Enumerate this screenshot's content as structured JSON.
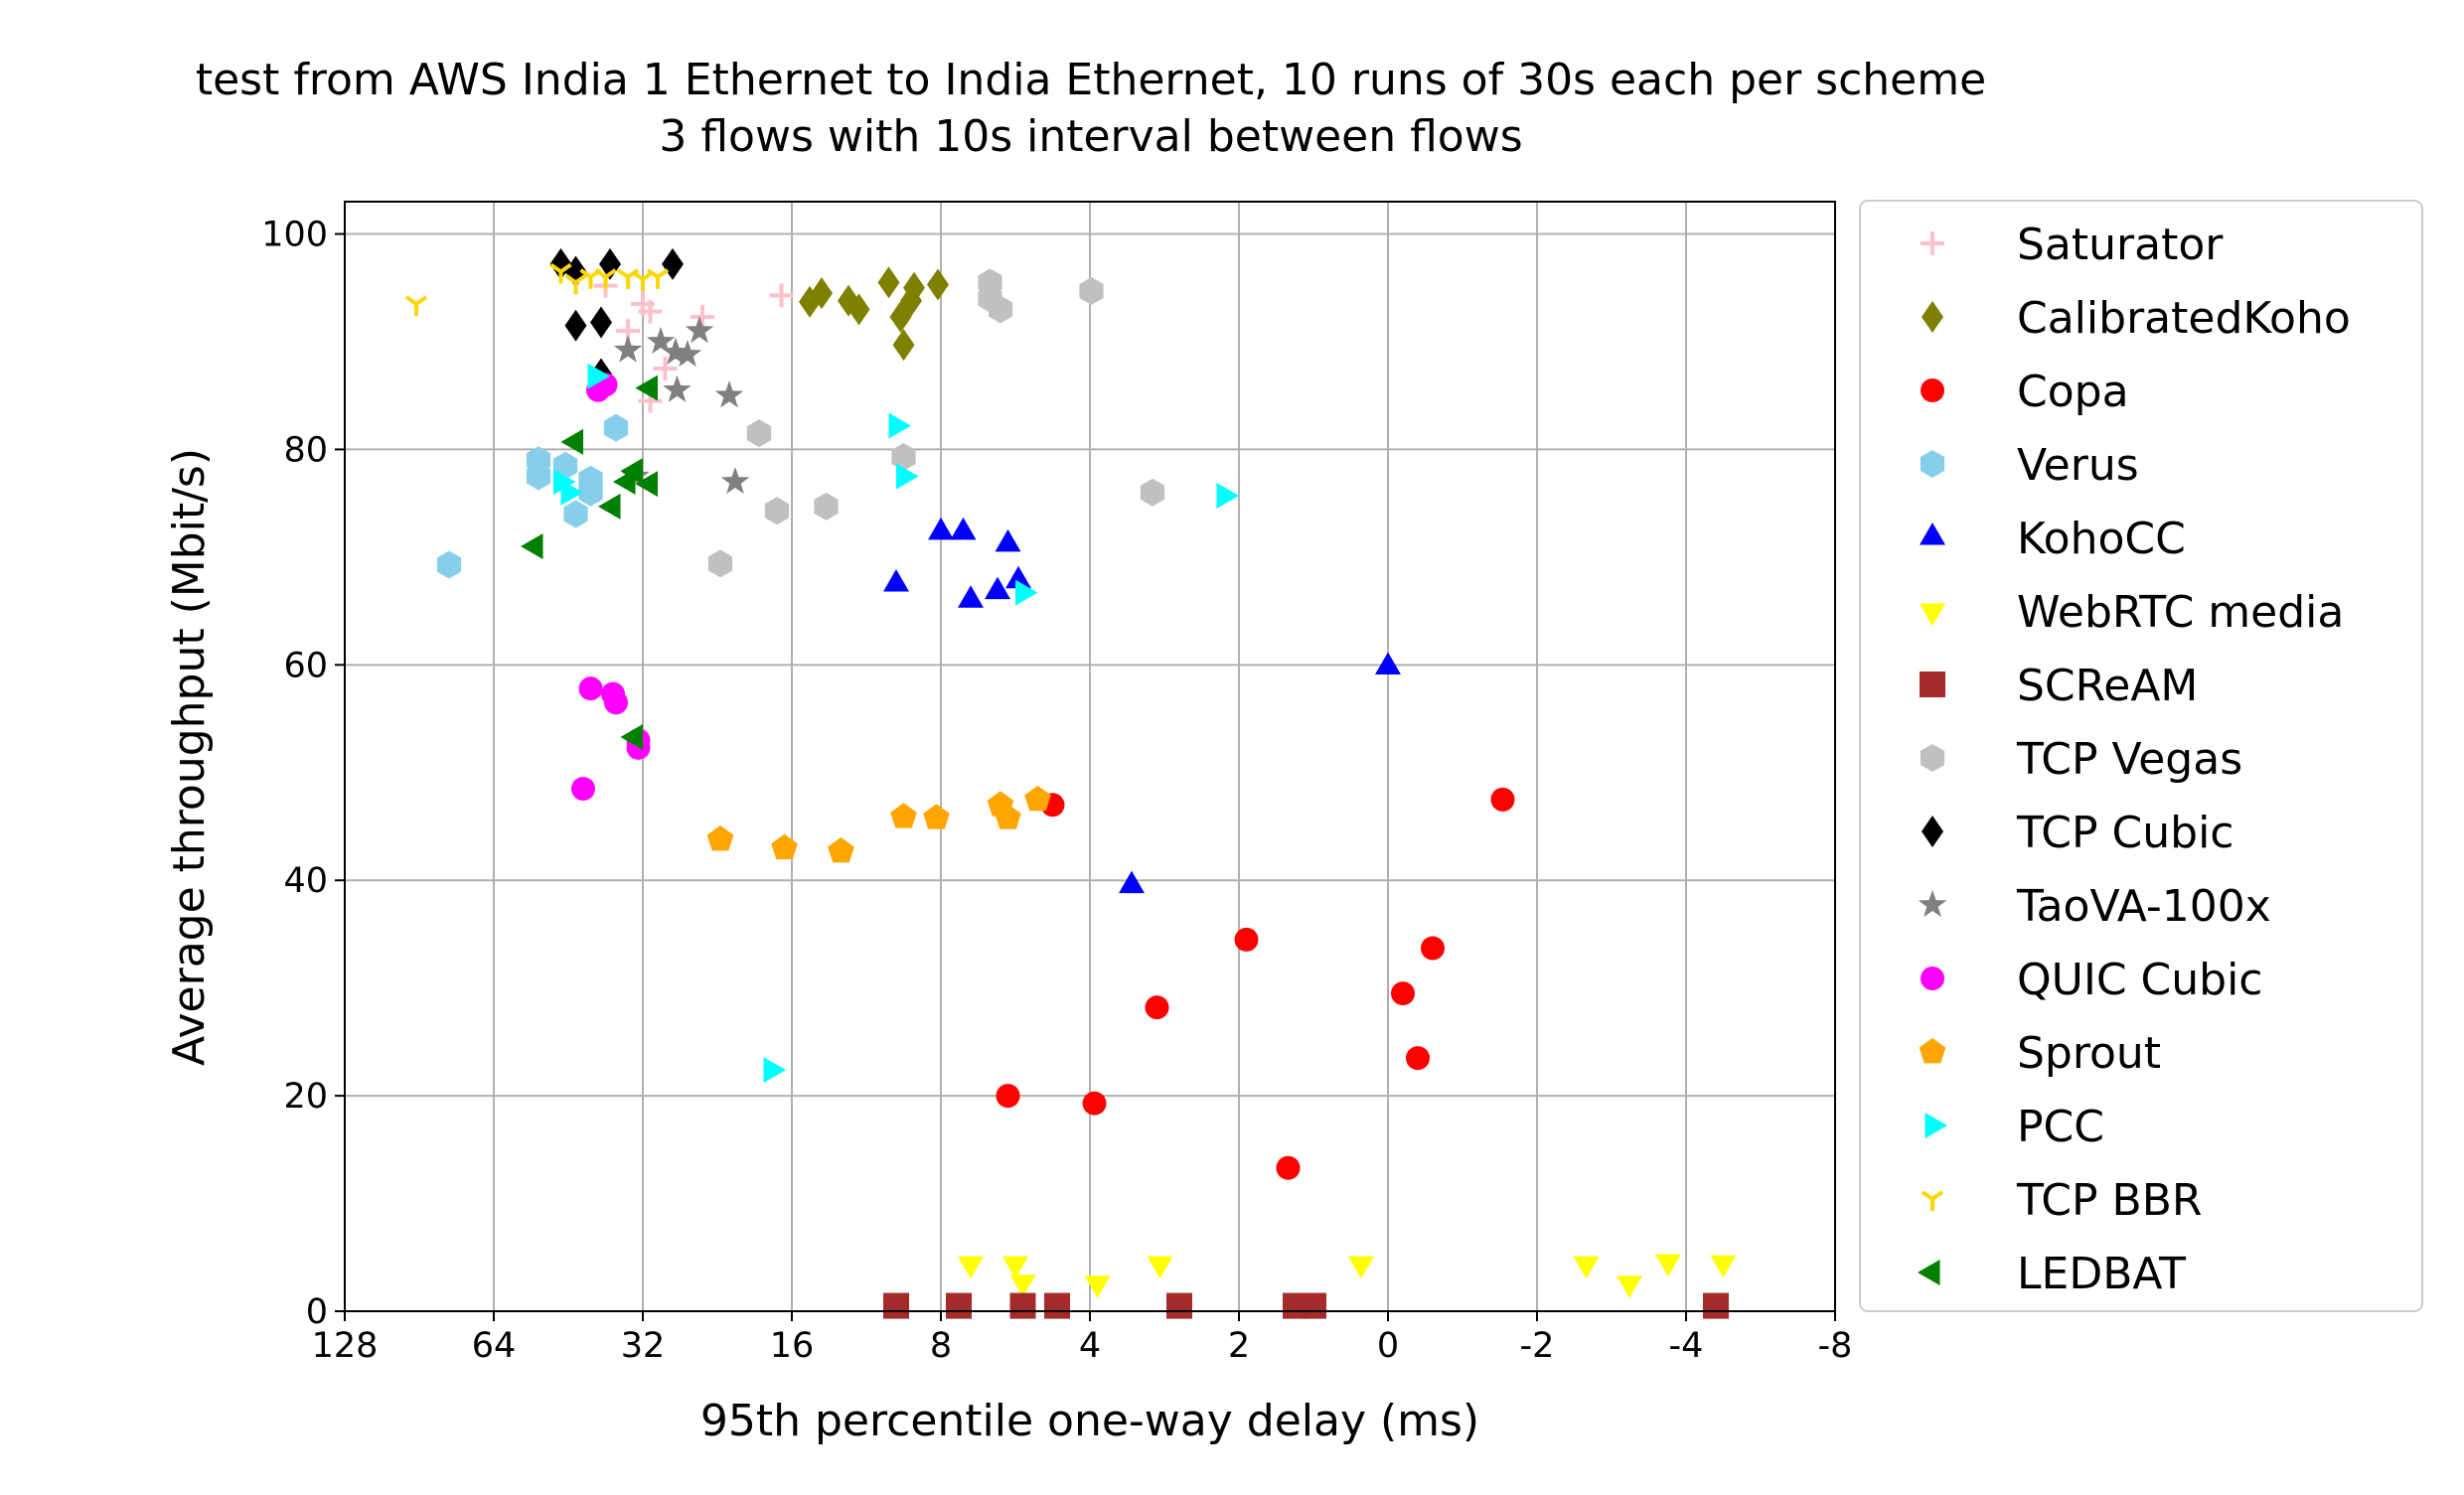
{
  "chart_data": {
    "type": "scatter",
    "title": "test from AWS India 1 Ethernet to India Ethernet, 10 runs of 30s each per scheme",
    "subtitle": "3 flows with 10s interval between flows",
    "xlabel": "95th percentile one-way delay (ms)",
    "ylabel": "Average throughput (Mbit/s)",
    "x_ticks": [
      {
        "value": 7,
        "label": "128"
      },
      {
        "value": 6,
        "label": "64"
      },
      {
        "value": 5,
        "label": "32"
      },
      {
        "value": 4,
        "label": "16"
      },
      {
        "value": 3,
        "label": "8"
      },
      {
        "value": 2,
        "label": "4"
      },
      {
        "value": 1,
        "label": "2"
      },
      {
        "value": 0,
        "label": "0"
      },
      {
        "value": -1,
        "label": "-2"
      },
      {
        "value": -2,
        "label": "-4"
      },
      {
        "value": -3,
        "label": "-8"
      }
    ],
    "xlim": [
      7,
      -3
    ],
    "y_ticks": [
      0,
      20,
      40,
      60,
      80,
      100
    ],
    "ylim": [
      0,
      103
    ],
    "grid": true,
    "legend_position": "right",
    "series": [
      {
        "name": "Saturator",
        "marker": "plus",
        "color": "#ffc0cb",
        "points": [
          [
            5.0,
            93.5
          ],
          [
            4.95,
            92.8
          ],
          [
            4.6,
            92.3
          ],
          [
            4.07,
            94.3
          ],
          [
            5.25,
            95.2
          ],
          [
            5.1,
            91.0
          ],
          [
            4.85,
            87.5
          ],
          [
            4.95,
            84.5
          ]
        ]
      },
      {
        "name": "CalibratedKoho",
        "marker": "diamond",
        "color": "#808000",
        "points": [
          [
            3.88,
            93.7
          ],
          [
            3.8,
            94.5
          ],
          [
            3.62,
            93.8
          ],
          [
            3.55,
            93.0
          ],
          [
            3.35,
            95.5
          ],
          [
            3.18,
            95.0
          ],
          [
            3.02,
            95.3
          ],
          [
            3.27,
            92.3
          ],
          [
            3.25,
            89.7
          ],
          [
            3.2,
            93.8
          ]
        ]
      },
      {
        "name": "Copa",
        "marker": "circle",
        "color": "#ff0000",
        "points": [
          [
            2.25,
            47.0
          ],
          [
            -0.77,
            47.5
          ],
          [
            0.95,
            34.5
          ],
          [
            -0.3,
            33.7
          ],
          [
            1.55,
            28.2
          ],
          [
            -0.1,
            29.5
          ],
          [
            -0.2,
            23.5
          ],
          [
            2.55,
            20.0
          ],
          [
            1.97,
            19.3
          ],
          [
            0.67,
            13.3
          ]
        ]
      },
      {
        "name": "Verus",
        "marker": "hexagon",
        "color": "#87ceeb",
        "points": [
          [
            6.3,
            69.3
          ],
          [
            5.7,
            79.0
          ],
          [
            5.7,
            77.5
          ],
          [
            5.52,
            78.5
          ],
          [
            5.35,
            77.2
          ],
          [
            5.18,
            82.0
          ],
          [
            5.45,
            74.0
          ],
          [
            5.35,
            76.0
          ]
        ]
      },
      {
        "name": "KohoCC",
        "marker": "triangle-up",
        "color": "#0000ff",
        "points": [
          [
            3.0,
            72.3
          ],
          [
            2.85,
            72.3
          ],
          [
            2.55,
            71.2
          ],
          [
            2.8,
            66.0
          ],
          [
            2.62,
            66.8
          ],
          [
            2.48,
            67.8
          ],
          [
            3.3,
            67.5
          ],
          [
            0.0,
            59.8
          ],
          [
            1.72,
            39.5
          ]
        ]
      },
      {
        "name": "WebRTC media",
        "marker": "triangle-down",
        "color": "#ffff00",
        "points": [
          [
            2.8,
            4.4
          ],
          [
            2.5,
            4.4
          ],
          [
            2.45,
            2.7
          ],
          [
            1.95,
            2.6
          ],
          [
            1.53,
            4.4
          ],
          [
            0.18,
            4.4
          ],
          [
            -1.33,
            4.4
          ],
          [
            -1.62,
            2.6
          ],
          [
            -1.88,
            4.6
          ],
          [
            -2.25,
            4.5
          ]
        ]
      },
      {
        "name": "SCReAM",
        "marker": "square",
        "color": "#a52a2a",
        "points": [
          [
            3.3,
            0.5
          ],
          [
            2.88,
            0.5
          ],
          [
            2.45,
            0.5
          ],
          [
            2.22,
            0.5
          ],
          [
            1.4,
            0.5
          ],
          [
            0.62,
            0.5
          ],
          [
            0.5,
            0.5
          ],
          [
            -2.2,
            0.5
          ]
        ]
      },
      {
        "name": "TCP Vegas",
        "marker": "hexagon",
        "color": "#c0c0c0",
        "points": [
          [
            2.67,
            95.5
          ],
          [
            2.67,
            94.0
          ],
          [
            2.6,
            93.0
          ],
          [
            1.99,
            94.7
          ],
          [
            4.22,
            81.5
          ],
          [
            4.1,
            74.3
          ],
          [
            3.77,
            74.7
          ],
          [
            4.48,
            69.4
          ],
          [
            3.25,
            79.3
          ],
          [
            1.58,
            76.0
          ]
        ]
      },
      {
        "name": "TCP Cubic",
        "marker": "diamond",
        "color": "#000000",
        "points": [
          [
            5.55,
            97.2
          ],
          [
            5.45,
            96.5
          ],
          [
            5.22,
            97.2
          ],
          [
            4.8,
            97.2
          ],
          [
            5.45,
            91.5
          ],
          [
            5.28,
            91.8
          ],
          [
            5.28,
            87.0
          ]
        ]
      },
      {
        "name": "TaoVA-100x",
        "marker": "star",
        "color": "#808080",
        "points": [
          [
            5.1,
            89.2
          ],
          [
            4.88,
            90.0
          ],
          [
            4.78,
            89.0
          ],
          [
            4.7,
            88.8
          ],
          [
            4.62,
            91.0
          ],
          [
            4.77,
            85.5
          ],
          [
            4.42,
            85.0
          ],
          [
            4.38,
            77.0
          ],
          [
            5.05,
            77.5
          ]
        ]
      },
      {
        "name": "QUIC Cubic",
        "marker": "circle",
        "color": "#ff00ff",
        "points": [
          [
            5.3,
            85.5
          ],
          [
            5.25,
            86.0
          ],
          [
            5.35,
            57.8
          ],
          [
            5.2,
            57.3
          ],
          [
            5.18,
            56.5
          ],
          [
            5.03,
            53.0
          ],
          [
            5.03,
            52.3
          ],
          [
            5.4,
            48.5
          ]
        ]
      },
      {
        "name": "Sprout",
        "marker": "pentagon",
        "color": "#ffa500",
        "points": [
          [
            4.48,
            43.8
          ],
          [
            4.05,
            43.0
          ],
          [
            3.67,
            42.7
          ],
          [
            3.25,
            45.9
          ],
          [
            3.03,
            45.8
          ],
          [
            2.6,
            47.0
          ],
          [
            2.55,
            45.8
          ],
          [
            2.35,
            47.5
          ]
        ]
      },
      {
        "name": "PCC",
        "marker": "triangle-right",
        "color": "#00ffff",
        "points": [
          [
            5.32,
            86.8
          ],
          [
            3.3,
            82.2
          ],
          [
            3.25,
            77.5
          ],
          [
            1.1,
            75.7
          ],
          [
            5.5,
            76.0
          ],
          [
            5.55,
            77.0
          ],
          [
            2.45,
            66.7
          ],
          [
            4.14,
            22.4
          ]
        ]
      },
      {
        "name": "TCP BBR",
        "marker": "tri-down",
        "color": "#ffd700",
        "points": [
          [
            6.52,
            93.5
          ],
          [
            5.45,
            95.5
          ],
          [
            5.35,
            96.0
          ],
          [
            5.25,
            96.0
          ],
          [
            5.1,
            96.0
          ],
          [
            5.0,
            95.8
          ],
          [
            4.9,
            96.0
          ],
          [
            5.55,
            96.5
          ]
        ]
      },
      {
        "name": "LEDBAT",
        "marker": "triangle-left",
        "color": "#008000",
        "points": [
          [
            4.95,
            85.7
          ],
          [
            5.45,
            80.7
          ],
          [
            5.05,
            78.0
          ],
          [
            5.1,
            77.0
          ],
          [
            4.95,
            76.8
          ],
          [
            5.2,
            74.7
          ],
          [
            5.72,
            71.0
          ],
          [
            5.05,
            53.3
          ]
        ]
      }
    ]
  }
}
